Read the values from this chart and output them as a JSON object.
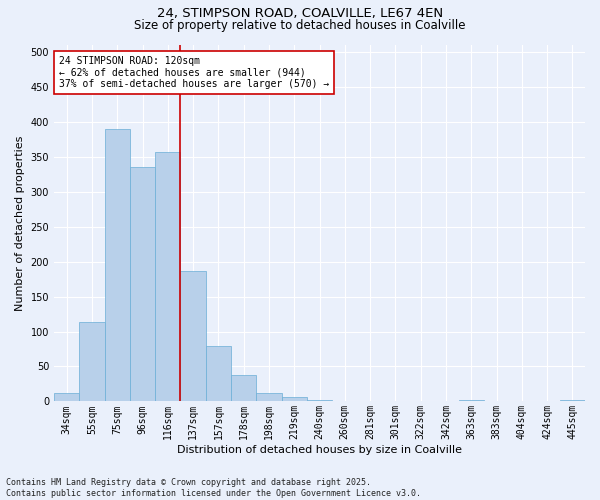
{
  "title_line1": "24, STIMPSON ROAD, COALVILLE, LE67 4EN",
  "title_line2": "Size of property relative to detached houses in Coalville",
  "xlabel": "Distribution of detached houses by size in Coalville",
  "ylabel": "Number of detached properties",
  "categories": [
    "34sqm",
    "55sqm",
    "75sqm",
    "96sqm",
    "116sqm",
    "137sqm",
    "157sqm",
    "178sqm",
    "198sqm",
    "219sqm",
    "240sqm",
    "260sqm",
    "281sqm",
    "301sqm",
    "322sqm",
    "342sqm",
    "363sqm",
    "383sqm",
    "404sqm",
    "424sqm",
    "445sqm"
  ],
  "values": [
    12,
    114,
    390,
    335,
    357,
    186,
    79,
    38,
    12,
    6,
    2,
    0,
    0,
    0,
    0,
    0,
    2,
    0,
    0,
    0,
    2
  ],
  "bar_color": "#b8d0ea",
  "bar_edge_color": "#6aaed6",
  "bar_edge_width": 0.5,
  "vline_x_index": 4.5,
  "vline_color": "#cc0000",
  "annotation_line1": "24 STIMPSON ROAD: 120sqm",
  "annotation_line2": "← 62% of detached houses are smaller (944)",
  "annotation_line3": "37% of semi-detached houses are larger (570) →",
  "annotation_box_color": "#cc0000",
  "ylim": [
    0,
    510
  ],
  "yticks": [
    0,
    50,
    100,
    150,
    200,
    250,
    300,
    350,
    400,
    450,
    500
  ],
  "background_color": "#eaf0fb",
  "grid_color": "#ffffff",
  "footnote": "Contains HM Land Registry data © Crown copyright and database right 2025.\nContains public sector information licensed under the Open Government Licence v3.0.",
  "title_fontsize": 9.5,
  "subtitle_fontsize": 8.5,
  "label_fontsize": 8,
  "tick_fontsize": 7,
  "annotation_fontsize": 7,
  "footnote_fontsize": 6
}
